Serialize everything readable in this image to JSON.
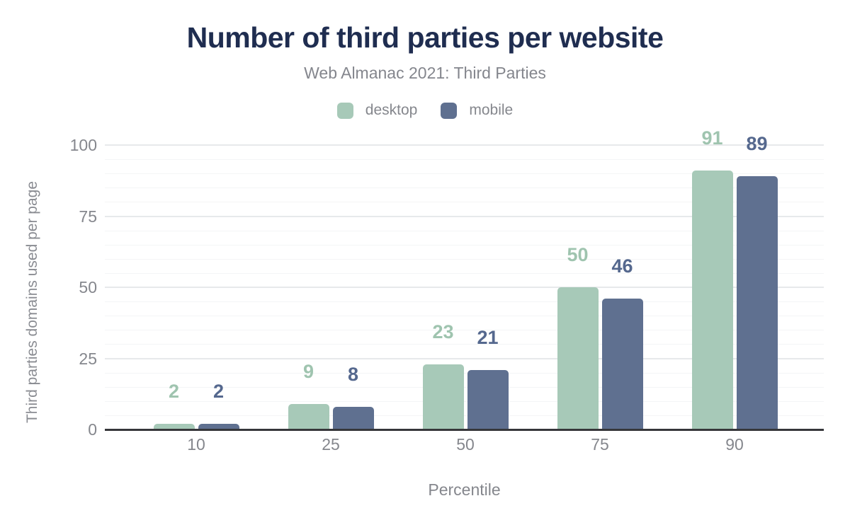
{
  "header": {
    "title": "Number of third parties per website",
    "subtitle": "Web Almanac 2021: Third Parties"
  },
  "colors": {
    "title": "#1f2d50",
    "subtitle": "#84868d",
    "axis_text": "#85878d",
    "axis_line": "#36373a",
    "grid_minor": "#f4f5f6",
    "grid_major": "#e7e9eb",
    "desktop": "#a7c9b8",
    "mobile": "#5f7090"
  },
  "chart_data": {
    "type": "bar",
    "categories": [
      "10",
      "25",
      "50",
      "75",
      "90"
    ],
    "series": [
      {
        "name": "desktop",
        "color": "#a7c9b8",
        "label_color": "#9fc4af",
        "values": [
          2,
          9,
          23,
          50,
          91
        ]
      },
      {
        "name": "mobile",
        "color": "#5f7090",
        "label_color": "#55688e",
        "values": [
          2,
          8,
          21,
          46,
          89
        ]
      }
    ],
    "title": "Number of third parties per website",
    "subtitle": "Web Almanac 2021: Third Parties",
    "xlabel": "Percentile",
    "ylabel": "Third parties domains used per page",
    "ylim": [
      0,
      100
    ],
    "yticks": [
      0,
      25,
      50,
      75,
      100
    ],
    "grid": {
      "minor_step": 5,
      "major_step": 25,
      "enabled": true
    },
    "legend_position": "top",
    "value_labels_shown": true
  }
}
